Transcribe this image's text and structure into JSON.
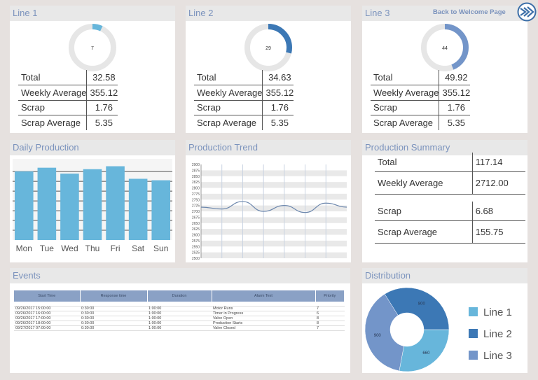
{
  "header": {
    "back_link": "Back to Welcome Page",
    "logo_icon": "chevron-arrows-logo-icon"
  },
  "colors": {
    "line1": "#67b6db",
    "line2": "#3c78b5",
    "line3": "#7395c9",
    "title": "#7b93bd"
  },
  "lines": [
    {
      "title": "Line 1",
      "gauge_value": 7,
      "gauge_percent": 7,
      "stats": [
        {
          "label": "Total",
          "value": "32.58"
        },
        {
          "label": "Weekly Average",
          "value": "355.12"
        },
        {
          "label": "Scrap",
          "value": "1.76"
        },
        {
          "label": "Scrap Average",
          "value": "5.35"
        }
      ]
    },
    {
      "title": "Line 2",
      "gauge_value": 29,
      "gauge_percent": 29,
      "stats": [
        {
          "label": "Total",
          "value": "34.63"
        },
        {
          "label": "Weekly Average",
          "value": "355.12"
        },
        {
          "label": "Scrap",
          "value": "1.76"
        },
        {
          "label": "Scrap Average",
          "value": "5.35"
        }
      ]
    },
    {
      "title": "Line 3",
      "gauge_value": 44,
      "gauge_percent": 44,
      "stats": [
        {
          "label": "Total",
          "value": "49.92"
        },
        {
          "label": "Weekly Average",
          "value": "355.12"
        },
        {
          "label": "Scrap",
          "value": "1.76"
        },
        {
          "label": "Scrap Average",
          "value": "5.35"
        }
      ]
    }
  ],
  "daily": {
    "title": "Daily Production"
  },
  "trend": {
    "title": "Production Trend"
  },
  "summary": {
    "title": "Production Summary",
    "rows": [
      {
        "label": "Total",
        "value": "117.14"
      },
      {
        "label": "Weekly Average",
        "value": "2712.00"
      },
      {
        "label": "Scrap",
        "value": "6.68"
      },
      {
        "label": "Scrap Average",
        "value": "155.75"
      }
    ]
  },
  "events": {
    "title": "Events",
    "columns": [
      "Start Time",
      "Response time",
      "Duration",
      "Alarm Text",
      "Priority"
    ],
    "rows": [
      [
        "09/26/2017 15:00:00",
        "0:30:00",
        "1:00:00",
        "Motor Runs",
        "7"
      ],
      [
        "09/26/2017 16:00:00",
        "0:30:00",
        "1:00:00",
        "Timer in Progress",
        "6"
      ],
      [
        "09/26/2017 17:00:00",
        "0:30:00",
        "1:00:00",
        "Valve Open",
        "8"
      ],
      [
        "09/26/2017 18:00:00",
        "0:30:00",
        "1:00:00",
        "Production Starts",
        "8"
      ],
      [
        "09/27/2017 07:00:00",
        "0:30:00",
        "1:00:00",
        "Valve Closed",
        "7"
      ]
    ]
  },
  "distribution": {
    "title": "Distribution"
  },
  "chart_data": [
    {
      "type": "bar",
      "categories": [
        "Mon",
        "Tue",
        "Wed",
        "Thu",
        "Fri",
        "Sat",
        "Sun"
      ],
      "values": [
        93,
        98,
        90,
        96,
        100,
        83,
        81
      ],
      "grid": true,
      "ylim": [
        0,
        110
      ]
    },
    {
      "type": "line",
      "x": [
        0,
        1,
        2,
        3,
        4,
        5,
        6,
        7
      ],
      "values": [
        2718,
        2710,
        2742,
        2700,
        2725,
        2695,
        2735,
        2718
      ],
      "ylim": [
        2500,
        2900
      ],
      "yticks": [
        2500,
        2525,
        2550,
        2575,
        2600,
        2625,
        2650,
        2675,
        2700,
        2725,
        2750,
        2775,
        2800,
        2825,
        2850,
        2875,
        2900
      ],
      "grid": true
    },
    {
      "type": "pie",
      "donut": true,
      "series": [
        {
          "name": "Line 1",
          "value": 660
        },
        {
          "name": "Line 2",
          "value": 800
        },
        {
          "name": "Line 3",
          "value": 900
        }
      ],
      "legend": "right"
    }
  ]
}
